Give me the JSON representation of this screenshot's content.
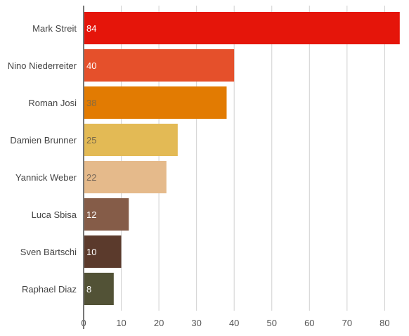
{
  "chart_data": {
    "type": "bar",
    "orientation": "horizontal",
    "title": "",
    "xlabel": "",
    "ylabel": "",
    "categories": [
      "Mark Streit",
      "Nino Niederreiter",
      "Roman Josi",
      "Damien Brunner",
      "Yannick Weber",
      "Luca Sbisa",
      "Sven Bärtschi",
      "Raphael Diaz"
    ],
    "values": [
      84,
      40,
      38,
      25,
      22,
      12,
      10,
      8
    ],
    "colors": [
      "#e5150a",
      "#e5502b",
      "#e27b02",
      "#e3ba55",
      "#e5ba8b",
      "#855c48",
      "#5b3a2c",
      "#525236"
    ],
    "label_colors": [
      "#ffffff",
      "#ffffff",
      "#8a6b3d",
      "#7a6a4a",
      "#7a6a5a",
      "#ffffff",
      "#ffffff",
      "#ffffff"
    ],
    "xlim": [
      0,
      85
    ],
    "x_ticks": [
      0,
      10,
      20,
      30,
      40,
      50,
      60,
      70,
      80
    ],
    "grid": true,
    "legend": "none"
  }
}
